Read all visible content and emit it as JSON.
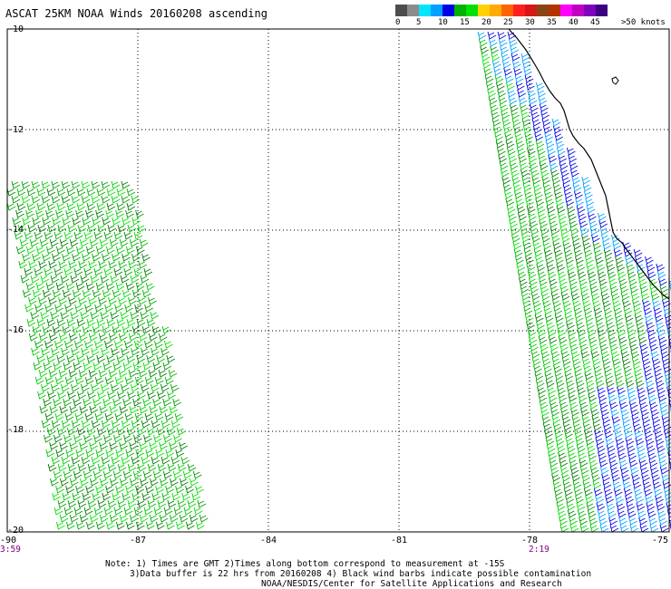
{
  "title": "ASCAT 25KM NOAA Winds 20160208 ascending",
  "legend": {
    "labels": [
      "0",
      "5",
      "10",
      "15",
      "20",
      "25",
      "30",
      "35",
      "40",
      "45",
      ">50 knots"
    ],
    "colors": [
      "#4d4d4d",
      "#8c8c8c",
      "#00e5ff",
      "#00a0ff",
      "#0000e6",
      "#00b300",
      "#00e000",
      "#ffd200",
      "#ffaa00",
      "#ff6400",
      "#ff2020",
      "#d61818",
      "#8b4513",
      "#b43200",
      "#ff00ff",
      "#c000c0",
      "#8000c0",
      "#3c0080"
    ]
  },
  "map": {
    "lat_ticks": [
      "-10",
      "-12",
      "-14",
      "-16",
      "-18",
      "-20"
    ],
    "lon_ticks": [
      "-90",
      "-87",
      "-84",
      "-81",
      "-78",
      "-75"
    ],
    "lat_range": [
      -10,
      -20
    ],
    "lon_range": [
      -90,
      -75
    ],
    "grid": "dotted"
  },
  "times": {
    "left": "3:59",
    "right": "2:19"
  },
  "notes": {
    "line1": "Note: 1) Times are GMT 2)Times along bottom correspond to measurement at -15S",
    "line2": "3)Data buffer is 22 hrs from 20160208 4) Black wind barbs indicate possible contamination",
    "line3": "NOAA/NESDIS/Center for Satellite Applications and Research"
  },
  "swaths": [
    {
      "name": "west-swath",
      "dominant_speed": "15-20 knots",
      "color": "#00b300"
    },
    {
      "name": "east-swath",
      "dominant_speed": "15-20 knots",
      "color": "#00b300",
      "coastal_speed": "10-15 knots",
      "coastal_color": "#0000e6"
    }
  ]
}
